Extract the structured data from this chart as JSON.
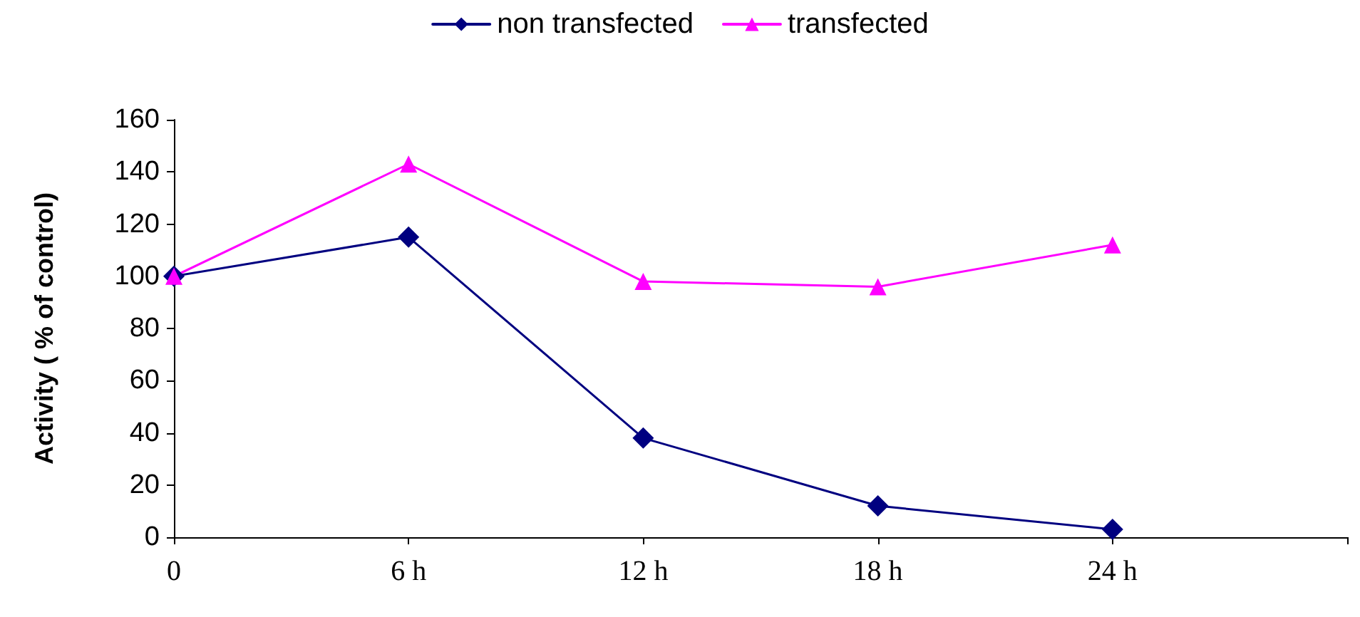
{
  "chart_data": {
    "type": "line",
    "ylabel": "Activity ( % of control)",
    "categories": [
      "0",
      "6 h",
      "12 h",
      "18 h",
      "24 h",
      null
    ],
    "series": [
      {
        "name": "non transfected",
        "color": "#000080",
        "marker": "diamond",
        "values": [
          100,
          115,
          38,
          12,
          3,
          null
        ]
      },
      {
        "name": "transfected",
        "color": "#ff00ff",
        "marker": "triangle",
        "values": [
          100,
          143,
          98,
          96,
          112,
          null
        ]
      }
    ],
    "ylim": [
      0,
      160
    ],
    "yticks": [
      0,
      20,
      40,
      60,
      80,
      100,
      120,
      140,
      160
    ],
    "grid": false,
    "legend": "top",
    "line_style": "solid"
  }
}
